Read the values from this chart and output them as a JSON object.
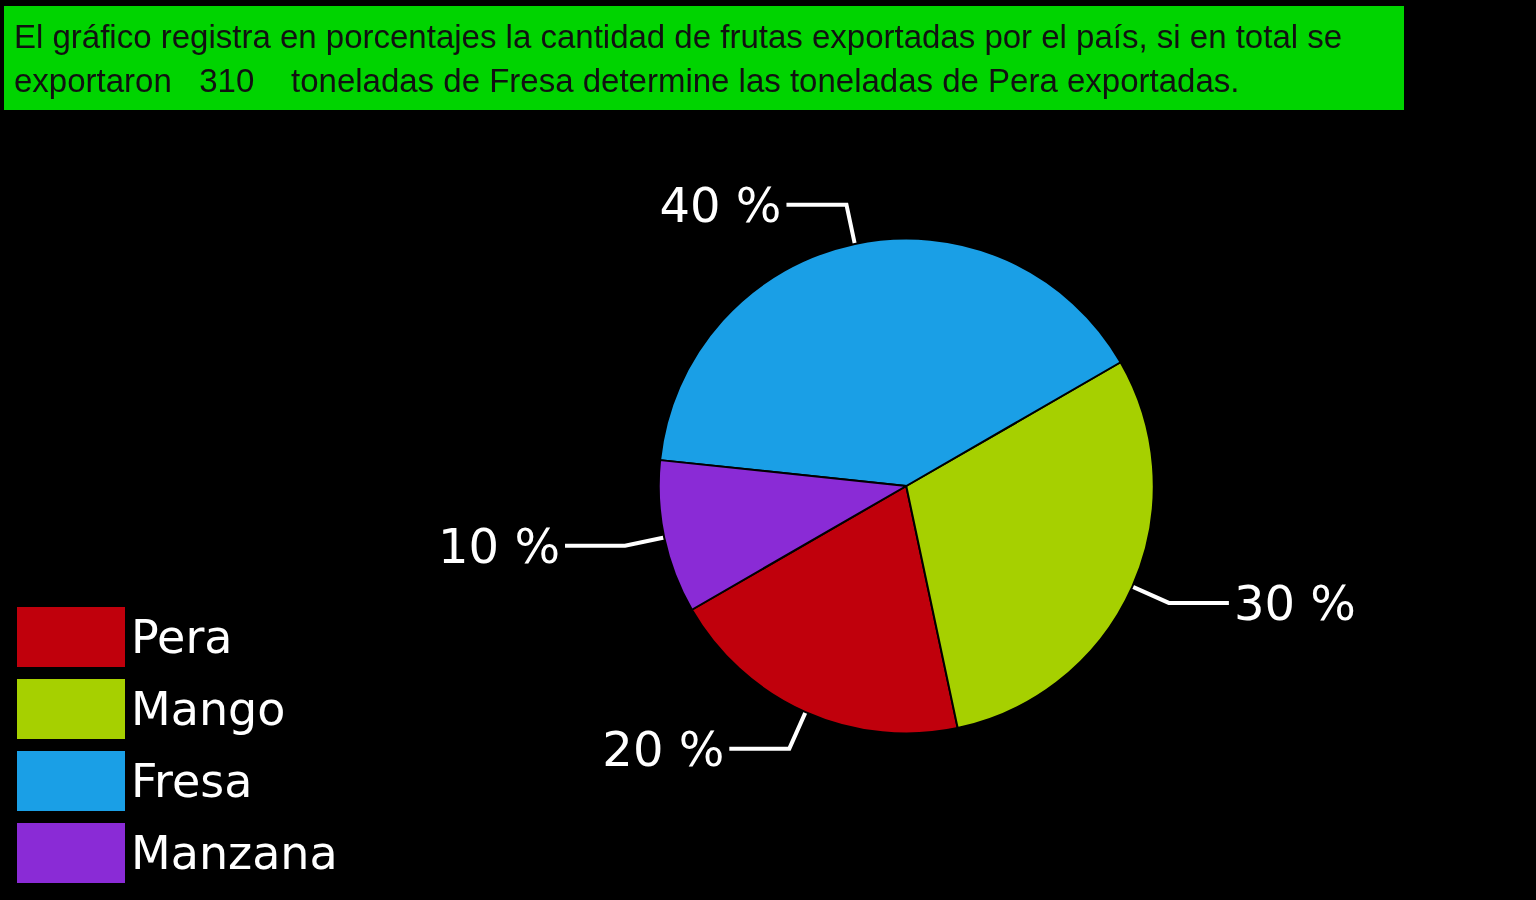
{
  "chart_data": {
    "type": "pie",
    "title": "El gráfico registra en porcentajes la cantidad de frutas exportadas por el país, si en total se exportaron   310    toneladas de Fresa determine las toneladas de Pera exportadas.",
    "categories": [
      "Pera",
      "Mango",
      "Fresa",
      "Manzana"
    ],
    "values": [
      20,
      30,
      40,
      10
    ],
    "colors": [
      "#c0000c",
      "#a6d000",
      "#1a9fe6",
      "#8a2bd6"
    ],
    "value_labels": [
      "20 %",
      "30 %",
      "40 %",
      "10 %"
    ],
    "legend": "bottom left"
  }
}
